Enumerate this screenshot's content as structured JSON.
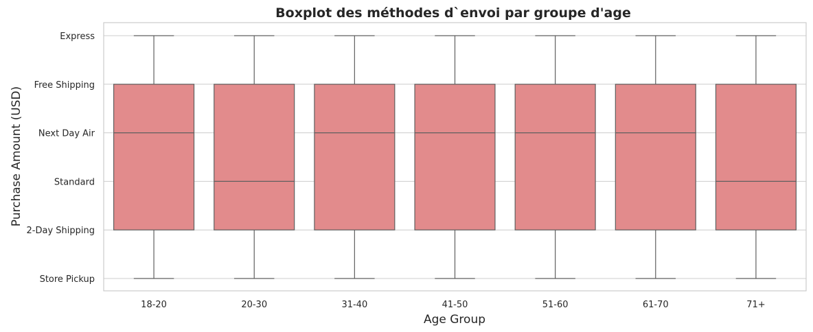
{
  "chart_data": {
    "type": "boxplot",
    "title": "Boxplot des méthodes d`envoi par groupe d'age",
    "xlabel": "Age Group",
    "ylabel": "Purchase Amount (USD)",
    "categories": [
      "18-20",
      "20-30",
      "31-40",
      "41-50",
      "51-60",
      "61-70",
      "71+"
    ],
    "y_categories": [
      "Store Pickup",
      "2-Day Shipping",
      "Standard",
      "Next Day Air",
      "Free Shipping",
      "Express"
    ],
    "boxes": [
      {
        "group": "18-20",
        "whisker_low": "Store Pickup",
        "q1": "2-Day Shipping",
        "median": "Next Day Air",
        "q3": "Free Shipping",
        "whisker_high": "Express"
      },
      {
        "group": "20-30",
        "whisker_low": "Store Pickup",
        "q1": "2-Day Shipping",
        "median": "Standard",
        "q3": "Free Shipping",
        "whisker_high": "Express"
      },
      {
        "group": "31-40",
        "whisker_low": "Store Pickup",
        "q1": "2-Day Shipping",
        "median": "Next Day Air",
        "q3": "Free Shipping",
        "whisker_high": "Express"
      },
      {
        "group": "41-50",
        "whisker_low": "Store Pickup",
        "q1": "2-Day Shipping",
        "median": "Next Day Air",
        "q3": "Free Shipping",
        "whisker_high": "Express"
      },
      {
        "group": "51-60",
        "whisker_low": "Store Pickup",
        "q1": "2-Day Shipping",
        "median": "Next Day Air",
        "q3": "Free Shipping",
        "whisker_high": "Express"
      },
      {
        "group": "61-70",
        "whisker_low": "Store Pickup",
        "q1": "2-Day Shipping",
        "median": "Next Day Air",
        "q3": "Free Shipping",
        "whisker_high": "Express"
      },
      {
        "group": "71+",
        "whisker_low": "Store Pickup",
        "q1": "2-Day Shipping",
        "median": "Standard",
        "q3": "Free Shipping",
        "whisker_high": "Express"
      }
    ],
    "grid": true,
    "legend": "none",
    "colors": {
      "box_fill": "#e28b8c",
      "box_line": "#5f5f5f",
      "grid": "#cccccc"
    }
  }
}
